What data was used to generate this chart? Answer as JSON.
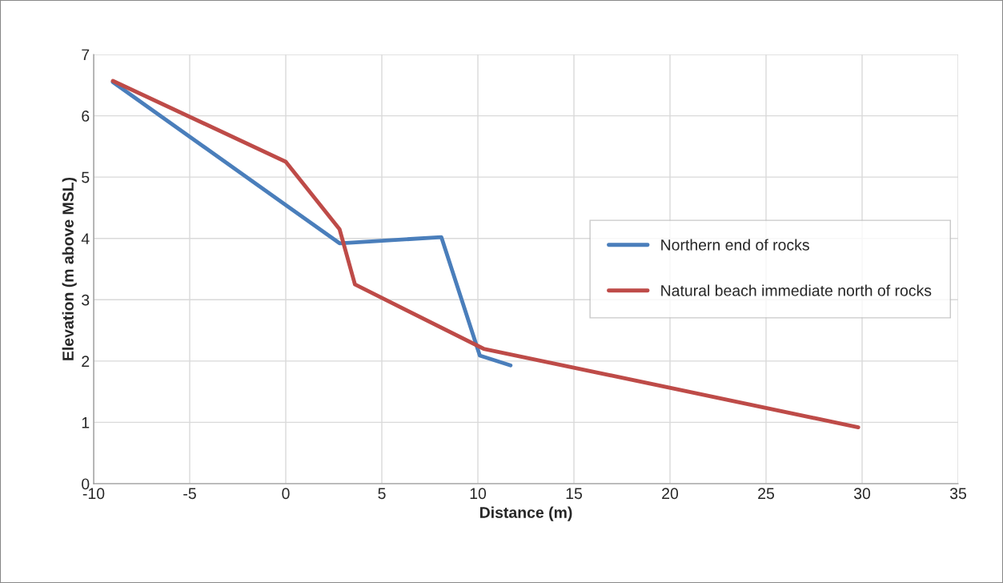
{
  "chart_data": {
    "type": "line",
    "xlabel": "Distance (m)",
    "ylabel": "Elevation (m above MSL)",
    "xlim": [
      -10,
      35
    ],
    "xticks": [
      -10,
      -5,
      0,
      5,
      10,
      15,
      20,
      25,
      30,
      35
    ],
    "ylim": [
      0,
      7
    ],
    "yticks": [
      0,
      1,
      2,
      3,
      4,
      5,
      6,
      7
    ],
    "grid": true,
    "legend": "right",
    "marker": "none",
    "line_style": "solid",
    "series": [
      {
        "name": "Northern end of rocks",
        "color": "#4a7ebb",
        "x": [
          -9,
          2.8,
          8.1,
          10.1,
          11.7
        ],
        "values": [
          6.55,
          3.92,
          4.02,
          2.09,
          1.93
        ]
      },
      {
        "name": "Natural beach immediate north of rocks",
        "color": "#be4b48",
        "x": [
          -9,
          0,
          2.8,
          3.6,
          10.3,
          29.8
        ],
        "values": [
          6.57,
          5.25,
          4.15,
          3.25,
          2.2,
          0.92
        ]
      }
    ]
  }
}
